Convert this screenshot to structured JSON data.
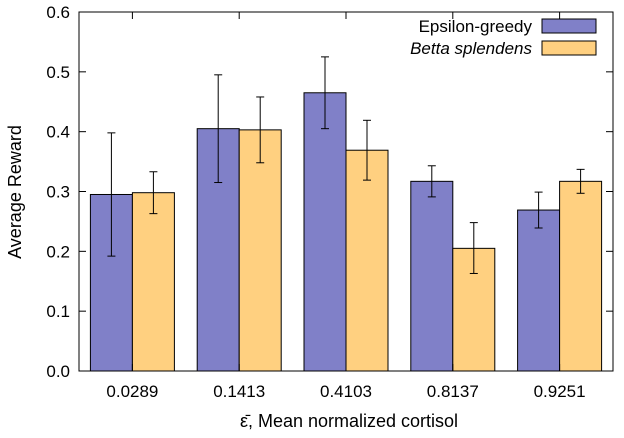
{
  "chart_data": {
    "type": "bar",
    "title": "",
    "xlabel": "ε̄, Mean normalized cortisol",
    "ylabel": "Average Reward",
    "ylim": [
      0,
      0.6
    ],
    "yticks": [
      0.0,
      0.1,
      0.2,
      0.3,
      0.4,
      0.5,
      0.6
    ],
    "ytick_labels": [
      "0.0",
      "0.1",
      "0.2",
      "0.3",
      "0.4",
      "0.5",
      "0.6"
    ],
    "categories": [
      "0.0289",
      "0.1413",
      "0.4103",
      "0.8137",
      "0.9251"
    ],
    "legend_position": "top-right",
    "series": [
      {
        "name": "Epsilon-greedy",
        "italic": false,
        "color": "#8080c8",
        "values": [
          0.295,
          0.405,
          0.465,
          0.317,
          0.269
        ],
        "err_low": [
          0.192,
          0.315,
          0.405,
          0.291,
          0.239
        ],
        "err_high": [
          0.398,
          0.495,
          0.525,
          0.343,
          0.299
        ]
      },
      {
        "name": "Betta splendens",
        "italic": true,
        "color": "#ffd080",
        "values": [
          0.298,
          0.403,
          0.369,
          0.205,
          0.317
        ],
        "err_low": [
          0.263,
          0.348,
          0.319,
          0.163,
          0.297
        ],
        "err_high": [
          0.333,
          0.458,
          0.419,
          0.248,
          0.337
        ]
      }
    ]
  }
}
